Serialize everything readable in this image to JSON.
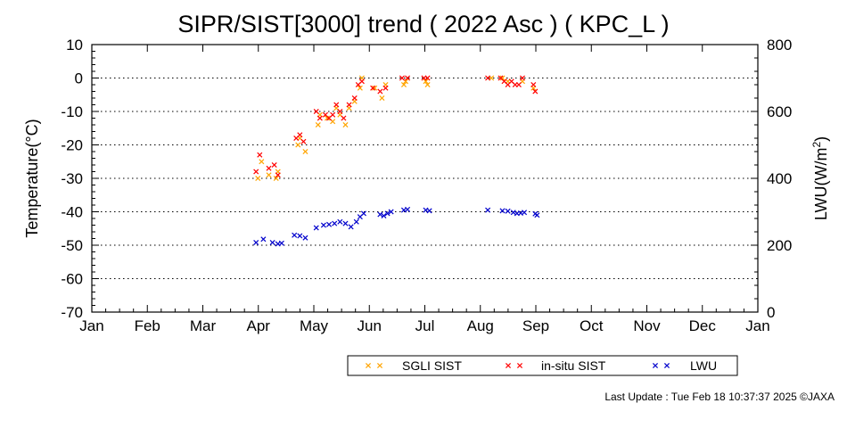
{
  "chart_data": {
    "type": "scatter",
    "title": "SIPR/SIST[3000] trend ( 2022 Asc ) ( KPC_L )",
    "ylabel": "Temperature(°C)",
    "y2label_prefix": "LWU(W/m",
    "y2label_sup": "2",
    "y2label_suffix": ")",
    "ylim": [
      -70,
      10
    ],
    "y2lim": [
      0,
      800
    ],
    "yticks": [
      "10",
      "0",
      "-10",
      "-20",
      "-30",
      "-40",
      "-50",
      "-60",
      "-70"
    ],
    "y2ticks": [
      "800",
      "600",
      "400",
      "200",
      "0"
    ],
    "xticks": [
      "Jan",
      "Feb",
      "Mar",
      "Apr",
      "May",
      "Jun",
      "Jul",
      "Aug",
      "Sep",
      "Oct",
      "Nov",
      "Dec",
      "Jan"
    ],
    "grid": "dotted horizontal",
    "legend_position": "bottom-right",
    "series": [
      {
        "name": "SGLI SIST",
        "color": "#ffa500",
        "axis": "left",
        "points": [
          [
            "2022-04-02",
            -30
          ],
          [
            "2022-04-04",
            -25
          ],
          [
            "2022-04-08",
            -29
          ],
          [
            "2022-04-12",
            -30
          ],
          [
            "2022-04-13",
            -28
          ],
          [
            "2022-04-24",
            -20
          ],
          [
            "2022-04-25",
            -18
          ],
          [
            "2022-04-28",
            -22
          ],
          [
            "2022-05-05",
            -14
          ],
          [
            "2022-05-06",
            -11
          ],
          [
            "2022-05-10",
            -12
          ],
          [
            "2022-05-13",
            -13
          ],
          [
            "2022-05-15",
            -9
          ],
          [
            "2022-05-17",
            -11
          ],
          [
            "2022-05-20",
            -14
          ],
          [
            "2022-05-22",
            -9
          ],
          [
            "2022-05-25",
            -7
          ],
          [
            "2022-05-28",
            -3
          ],
          [
            "2022-05-29",
            0
          ],
          [
            "2022-06-05",
            -3
          ],
          [
            "2022-06-09",
            -6
          ],
          [
            "2022-06-11",
            -2
          ],
          [
            "2022-06-21",
            -2
          ],
          [
            "2022-06-22",
            -1
          ],
          [
            "2022-07-03",
            -1
          ],
          [
            "2022-07-04",
            -2
          ],
          [
            "2022-08-08",
            0
          ],
          [
            "2022-08-14",
            0
          ],
          [
            "2022-08-17",
            -1
          ],
          [
            "2022-08-25",
            -1
          ],
          [
            "2022-08-31",
            -3
          ]
        ]
      },
      {
        "name": "in-situ SIST",
        "color": "#ff0000",
        "axis": "left",
        "points": [
          [
            "2022-04-01",
            -28
          ],
          [
            "2022-04-03",
            -23
          ],
          [
            "2022-04-08",
            -27
          ],
          [
            "2022-04-11",
            -26
          ],
          [
            "2022-04-13",
            -29
          ],
          [
            "2022-04-23",
            -18
          ],
          [
            "2022-04-25",
            -17
          ],
          [
            "2022-04-27",
            -19
          ],
          [
            "2022-05-04",
            -10
          ],
          [
            "2022-05-06",
            -12
          ],
          [
            "2022-05-09",
            -11
          ],
          [
            "2022-05-11",
            -12
          ],
          [
            "2022-05-13",
            -11
          ],
          [
            "2022-05-15",
            -8
          ],
          [
            "2022-05-17",
            -10
          ],
          [
            "2022-05-19",
            -12
          ],
          [
            "2022-05-22",
            -8
          ],
          [
            "2022-05-25",
            -6
          ],
          [
            "2022-05-27",
            -2
          ],
          [
            "2022-05-29",
            -1
          ],
          [
            "2022-06-04",
            -3
          ],
          [
            "2022-06-08",
            -4
          ],
          [
            "2022-06-11",
            -3
          ],
          [
            "2022-06-20",
            0
          ],
          [
            "2022-06-23",
            0
          ],
          [
            "2022-07-02",
            0
          ],
          [
            "2022-07-04",
            0
          ],
          [
            "2022-08-06",
            0
          ],
          [
            "2022-08-13",
            0
          ],
          [
            "2022-08-15",
            -1
          ],
          [
            "2022-08-17",
            -2
          ],
          [
            "2022-08-19",
            -1
          ],
          [
            "2022-08-21",
            -2
          ],
          [
            "2022-08-23",
            -2
          ],
          [
            "2022-08-25",
            0
          ],
          [
            "2022-08-31",
            -2
          ],
          [
            "2022-09-01",
            -4
          ]
        ]
      },
      {
        "name": "LWU",
        "color": "#0000cc",
        "axis": "right",
        "points": [
          [
            "2022-04-01",
            208
          ],
          [
            "2022-04-05",
            218
          ],
          [
            "2022-04-10",
            208
          ],
          [
            "2022-04-13",
            204
          ],
          [
            "2022-04-15",
            206
          ],
          [
            "2022-04-22",
            230
          ],
          [
            "2022-04-25",
            228
          ],
          [
            "2022-04-28",
            222
          ],
          [
            "2022-05-04",
            252
          ],
          [
            "2022-05-08",
            260
          ],
          [
            "2022-05-11",
            262
          ],
          [
            "2022-05-14",
            265
          ],
          [
            "2022-05-17",
            270
          ],
          [
            "2022-05-20",
            265
          ],
          [
            "2022-05-23",
            255
          ],
          [
            "2022-05-26",
            270
          ],
          [
            "2022-05-28",
            285
          ],
          [
            "2022-05-30",
            295
          ],
          [
            "2022-06-08",
            292
          ],
          [
            "2022-06-10",
            288
          ],
          [
            "2022-06-12",
            295
          ],
          [
            "2022-06-14",
            300
          ],
          [
            "2022-06-21",
            305
          ],
          [
            "2022-06-23",
            307
          ],
          [
            "2022-07-03",
            305
          ],
          [
            "2022-07-05",
            303
          ],
          [
            "2022-08-06",
            305
          ],
          [
            "2022-08-14",
            303
          ],
          [
            "2022-08-17",
            302
          ],
          [
            "2022-08-20",
            298
          ],
          [
            "2022-08-22",
            295
          ],
          [
            "2022-08-24",
            296
          ],
          [
            "2022-08-26",
            298
          ],
          [
            "2022-09-01",
            294
          ],
          [
            "2022-09-02",
            290
          ]
        ]
      }
    ]
  },
  "footer": {
    "last_update": "Last Update : Tue Feb 18 10:37:37 2025  ©JAXA"
  }
}
